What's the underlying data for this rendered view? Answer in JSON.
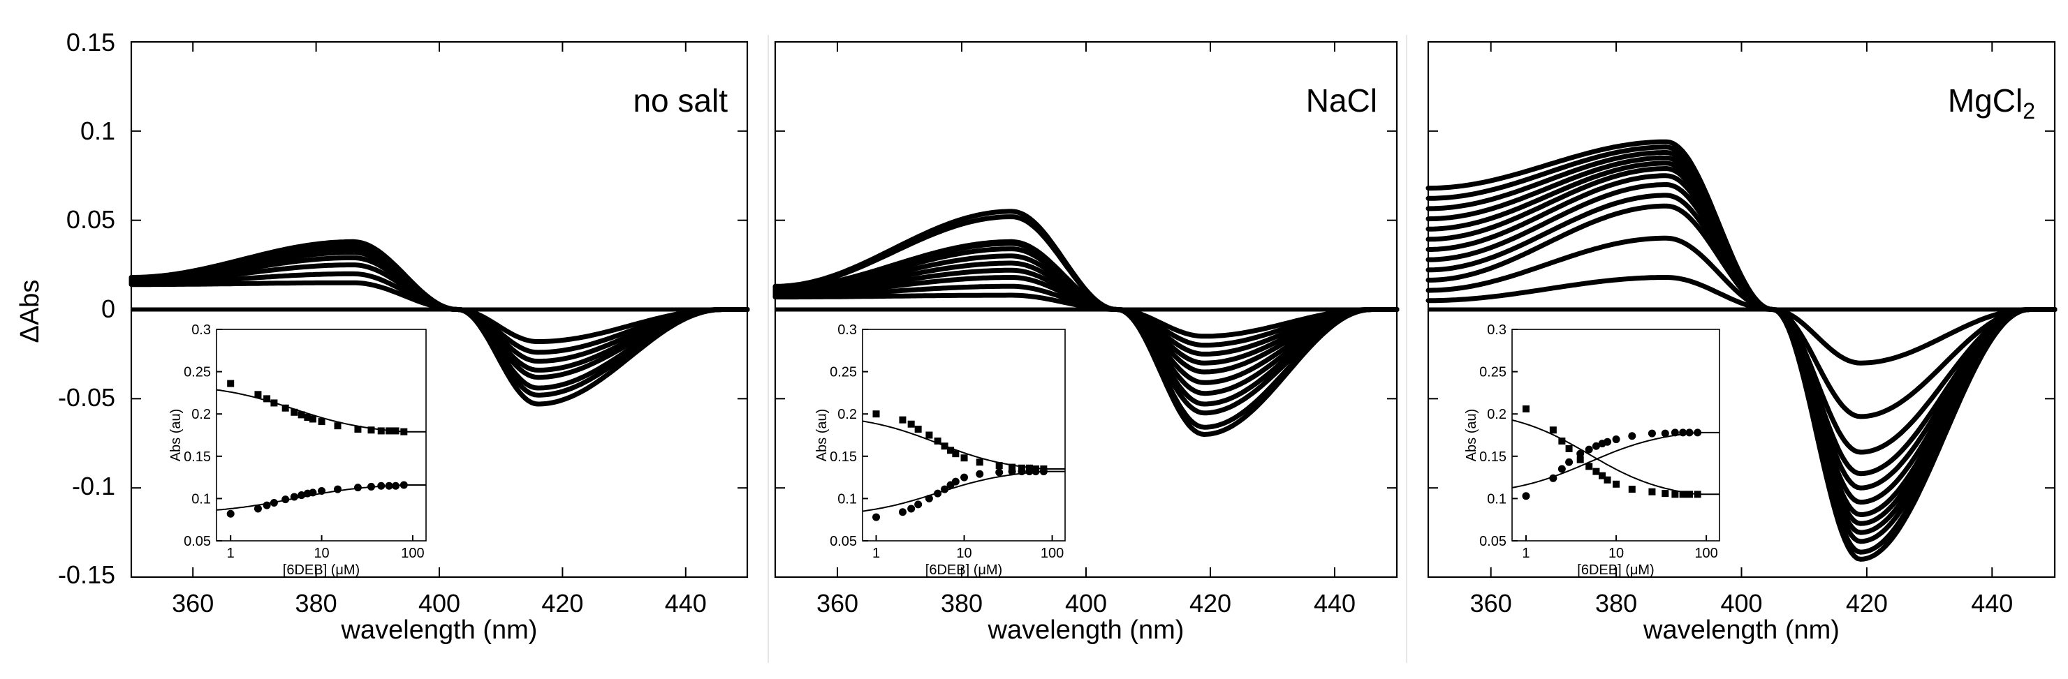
{
  "chart_data": {
    "type": "line",
    "ylabel": "ΔAbs",
    "ylim": [
      -0.15,
      0.15
    ],
    "yticks": [
      "0.15",
      "0.1",
      "0.05",
      "0",
      "-0.05",
      "-0.1",
      "-0.15"
    ],
    "xlim": [
      350,
      450
    ],
    "panels": [
      {
        "title": "no salt",
        "title_sub": "",
        "xlabel": "wavelength (nm)",
        "xticks": [
          "360",
          "380",
          "400",
          "420",
          "440"
        ],
        "xticks_values": [
          360,
          380,
          400,
          420,
          440
        ],
        "zero_cross": 403,
        "peak_x": 386,
        "trough_x": 416,
        "start": 0.014,
        "start_spread": 0.004,
        "peaks": [
          0.015,
          0.02,
          0.025,
          0.029,
          0.032,
          0.034,
          0.036,
          0.038
        ],
        "troughs": [
          -0.018,
          -0.024,
          -0.029,
          -0.034,
          -0.038,
          -0.044,
          -0.048,
          -0.053
        ],
        "inset": {
          "xlabel": "[6DEB] (μM)",
          "ylabel": "Abs (au)",
          "yticks": [
            "0.3",
            "0.25",
            "0.2",
            "0.15",
            "0.1",
            "0.05"
          ],
          "ylim": [
            0.05,
            0.3
          ],
          "xticks": [
            "1",
            "10",
            "100"
          ],
          "series": [
            {
              "name": "squares",
              "x": [
                1,
                2,
                2.5,
                3,
                4,
                5,
                6,
                7,
                8,
                10,
                15,
                25,
                35,
                45,
                55,
                65,
                80
              ],
              "y": [
                0.236,
                0.223,
                0.218,
                0.213,
                0.207,
                0.202,
                0.199,
                0.196,
                0.194,
                0.191,
                0.186,
                0.182,
                0.181,
                0.18,
                0.18,
                0.18,
                0.179
              ]
            },
            {
              "name": "circles",
              "x": [
                1,
                2,
                2.5,
                3,
                4,
                5,
                6,
                7,
                8,
                10,
                15,
                25,
                35,
                45,
                55,
                65,
                80
              ],
              "y": [
                0.082,
                0.088,
                0.092,
                0.095,
                0.099,
                0.102,
                0.104,
                0.106,
                0.107,
                0.109,
                0.111,
                0.113,
                0.114,
                0.115,
                0.115,
                0.115,
                0.116
              ]
            }
          ]
        }
      },
      {
        "title": "NaCl",
        "title_sub": "",
        "xlabel": "wavelength (nm)",
        "xticks": [
          "360",
          "380",
          "400",
          "420",
          "440"
        ],
        "xticks_values": [
          360,
          380,
          400,
          420,
          440
        ],
        "zero_cross": 405,
        "peak_x": 388,
        "trough_x": 419,
        "start": 0.007,
        "start_spread": 0.006,
        "peaks": [
          0.008,
          0.013,
          0.018,
          0.022,
          0.026,
          0.03,
          0.034,
          0.037,
          0.038,
          0.052,
          0.055
        ],
        "troughs": [
          -0.015,
          -0.02,
          -0.025,
          -0.03,
          -0.035,
          -0.041,
          -0.047,
          -0.053,
          -0.058,
          -0.066,
          -0.07
        ],
        "inset": {
          "xlabel": "[6DEB] (μM)",
          "ylabel": "Abs (au)",
          "yticks": [
            "0.3",
            "0.25",
            "0.2",
            "0.15",
            "0.1",
            "0.05"
          ],
          "ylim": [
            0.05,
            0.3
          ],
          "xticks": [
            "1",
            "10",
            "100"
          ],
          "series": [
            {
              "name": "squares",
              "x": [
                1,
                2,
                2.5,
                3,
                4,
                5,
                6,
                7,
                8,
                10,
                15,
                25,
                35,
                45,
                55,
                65,
                80
              ],
              "y": [
                0.2,
                0.193,
                0.188,
                0.182,
                0.175,
                0.168,
                0.162,
                0.157,
                0.153,
                0.148,
                0.143,
                0.139,
                0.137,
                0.136,
                0.136,
                0.135,
                0.135
              ]
            },
            {
              "name": "circles",
              "x": [
                1,
                2,
                2.5,
                3,
                4,
                5,
                6,
                7,
                8,
                10,
                15,
                25,
                35,
                45,
                55,
                65,
                80
              ],
              "y": [
                0.078,
                0.084,
                0.088,
                0.093,
                0.1,
                0.106,
                0.111,
                0.116,
                0.12,
                0.125,
                0.129,
                0.131,
                0.132,
                0.132,
                0.132,
                0.132,
                0.132
              ]
            }
          ]
        }
      },
      {
        "title": "MgCl",
        "title_sub": "2",
        "xlabel": "wavelength (nm)",
        "xticks": [
          "360",
          "380",
          "400",
          "420",
          "440"
        ],
        "xticks_values": [
          360,
          380,
          400,
          420,
          440
        ],
        "zero_cross": 405,
        "peak_x": 388,
        "trough_x": 419,
        "start": 0.005,
        "start_spread": 0.063,
        "peaks": [
          0.018,
          0.04,
          0.058,
          0.064,
          0.07,
          0.075,
          0.079,
          0.082,
          0.085,
          0.088,
          0.091,
          0.094
        ],
        "troughs": [
          -0.03,
          -0.06,
          -0.08,
          -0.092,
          -0.1,
          -0.108,
          -0.115,
          -0.12,
          -0.125,
          -0.13,
          -0.136,
          -0.14
        ],
        "inset": {
          "xlabel": "[6DEB] (μM)",
          "ylabel": "Abs (au)",
          "yticks": [
            "0.3",
            "0.25",
            "0.2",
            "0.15",
            "0.1",
            "0.05"
          ],
          "ylim": [
            0.05,
            0.3
          ],
          "xticks": [
            "1",
            "10",
            "100"
          ],
          "series": [
            {
              "name": "squares",
              "x": [
                1,
                2,
                2.5,
                3,
                4,
                5,
                6,
                7,
                8,
                10,
                15,
                25,
                35,
                45,
                55,
                65,
                80
              ],
              "y": [
                0.206,
                0.181,
                0.168,
                0.159,
                0.146,
                0.138,
                0.132,
                0.127,
                0.122,
                0.117,
                0.111,
                0.108,
                0.106,
                0.105,
                0.105,
                0.105,
                0.105
              ]
            },
            {
              "name": "circles",
              "x": [
                1,
                2,
                2.5,
                3,
                4,
                5,
                6,
                7,
                8,
                10,
                15,
                25,
                35,
                45,
                55,
                65,
                80
              ],
              "y": [
                0.103,
                0.124,
                0.135,
                0.143,
                0.153,
                0.158,
                0.162,
                0.165,
                0.167,
                0.17,
                0.174,
                0.177,
                0.177,
                0.178,
                0.178,
                0.178,
                0.178
              ]
            }
          ]
        }
      }
    ]
  }
}
